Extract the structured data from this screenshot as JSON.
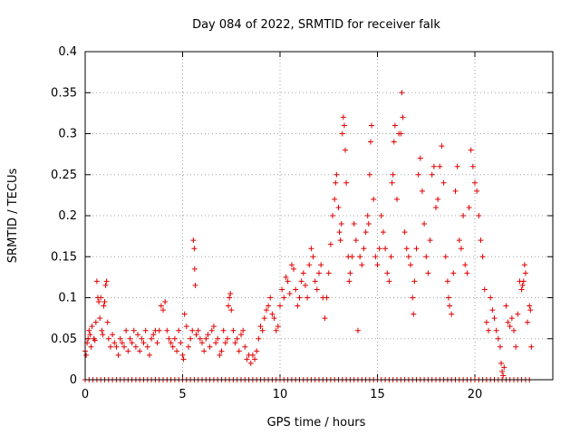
{
  "chart_data": {
    "type": "scatter",
    "title": "Day 084 of 2022, SRMTID for receiver falk",
    "xlabel": "GPS time / hours",
    "ylabel": "SRMTID / TECUs",
    "xlim": [
      0,
      24
    ],
    "ylim": [
      0,
      0.4
    ],
    "x_ticks": [
      0,
      5,
      10,
      15,
      20
    ],
    "x_tick_labels": [
      "0",
      "5",
      "10",
      "15",
      "20"
    ],
    "y_ticks": [
      0,
      0.05,
      0.1,
      0.15,
      0.2,
      0.25,
      0.3,
      0.35,
      0.4
    ],
    "y_tick_labels": [
      "0",
      "0.05",
      "0.1",
      "0.15",
      "0.2",
      "0.25",
      "0.3",
      "0.35",
      "0.4"
    ],
    "grid": true,
    "marker": "+",
    "color": "#e00000",
    "series": [
      {
        "name": "SRMTID",
        "points": [
          [
            0.0,
            0.035
          ],
          [
            0.05,
            0.03
          ],
          [
            0.1,
            0.045
          ],
          [
            0.15,
            0.05
          ],
          [
            0.2,
            0.06
          ],
          [
            0.25,
            0.055
          ],
          [
            0.3,
            0.04
          ],
          [
            0.35,
            0.065
          ],
          [
            0.45,
            0.05
          ],
          [
            0.5,
            0.048
          ],
          [
            0.55,
            0.07
          ],
          [
            0.6,
            0.12
          ],
          [
            0.65,
            0.1
          ],
          [
            0.7,
            0.095
          ],
          [
            0.75,
            0.075
          ],
          [
            0.8,
            0.1
          ],
          [
            0.85,
            0.06
          ],
          [
            0.9,
            0.055
          ],
          [
            0.95,
            0.09
          ],
          [
            1.0,
            0.095
          ],
          [
            1.05,
            0.115
          ],
          [
            1.1,
            0.12
          ],
          [
            1.15,
            0.07
          ],
          [
            1.2,
            0.05
          ],
          [
            1.3,
            0.04
          ],
          [
            1.4,
            0.055
          ],
          [
            1.5,
            0.045
          ],
          [
            1.6,
            0.04
          ],
          [
            1.7,
            0.03
          ],
          [
            1.8,
            0.05
          ],
          [
            1.9,
            0.045
          ],
          [
            2.0,
            0.04
          ],
          [
            2.1,
            0.06
          ],
          [
            2.2,
            0.035
          ],
          [
            2.3,
            0.05
          ],
          [
            2.4,
            0.045
          ],
          [
            2.5,
            0.06
          ],
          [
            2.6,
            0.04
          ],
          [
            2.7,
            0.055
          ],
          [
            2.8,
            0.035
          ],
          [
            2.9,
            0.05
          ],
          [
            3.0,
            0.045
          ],
          [
            3.1,
            0.06
          ],
          [
            3.2,
            0.04
          ],
          [
            3.3,
            0.03
          ],
          [
            3.4,
            0.05
          ],
          [
            3.5,
            0.055
          ],
          [
            3.6,
            0.06
          ],
          [
            3.7,
            0.045
          ],
          [
            3.8,
            0.06
          ],
          [
            3.9,
            0.09
          ],
          [
            4.0,
            0.085
          ],
          [
            4.1,
            0.095
          ],
          [
            4.2,
            0.06
          ],
          [
            4.3,
            0.05
          ],
          [
            4.4,
            0.045
          ],
          [
            4.5,
            0.04
          ],
          [
            4.6,
            0.05
          ],
          [
            4.7,
            0.035
          ],
          [
            4.8,
            0.06
          ],
          [
            4.9,
            0.045
          ],
          [
            5.0,
            0.03
          ],
          [
            5.05,
            0.025
          ],
          [
            5.1,
            0.08
          ],
          [
            5.2,
            0.065
          ],
          [
            5.3,
            0.04
          ],
          [
            5.4,
            0.05
          ],
          [
            5.5,
            0.06
          ],
          [
            5.55,
            0.17
          ],
          [
            5.6,
            0.16
          ],
          [
            5.62,
            0.135
          ],
          [
            5.65,
            0.115
          ],
          [
            5.7,
            0.055
          ],
          [
            5.8,
            0.06
          ],
          [
            5.9,
            0.05
          ],
          [
            6.0,
            0.045
          ],
          [
            6.1,
            0.035
          ],
          [
            6.2,
            0.05
          ],
          [
            6.3,
            0.055
          ],
          [
            6.4,
            0.04
          ],
          [
            6.5,
            0.06
          ],
          [
            6.6,
            0.065
          ],
          [
            6.7,
            0.045
          ],
          [
            6.8,
            0.05
          ],
          [
            6.9,
            0.03
          ],
          [
            7.0,
            0.035
          ],
          [
            7.1,
            0.06
          ],
          [
            7.2,
            0.045
          ],
          [
            7.3,
            0.05
          ],
          [
            7.35,
            0.09
          ],
          [
            7.4,
            0.1
          ],
          [
            7.45,
            0.105
          ],
          [
            7.5,
            0.085
          ],
          [
            7.6,
            0.06
          ],
          [
            7.7,
            0.045
          ],
          [
            7.8,
            0.05
          ],
          [
            7.9,
            0.035
          ],
          [
            8.0,
            0.055
          ],
          [
            8.1,
            0.06
          ],
          [
            8.2,
            0.04
          ],
          [
            8.3,
            0.025
          ],
          [
            8.4,
            0.03
          ],
          [
            8.5,
            0.02
          ],
          [
            8.6,
            0.03
          ],
          [
            8.7,
            0.025
          ],
          [
            8.8,
            0.035
          ],
          [
            8.9,
            0.05
          ],
          [
            9.0,
            0.065
          ],
          [
            9.1,
            0.06
          ],
          [
            9.2,
            0.075
          ],
          [
            9.3,
            0.085
          ],
          [
            9.4,
            0.09
          ],
          [
            9.5,
            0.1
          ],
          [
            9.6,
            0.08
          ],
          [
            9.7,
            0.075
          ],
          [
            9.8,
            0.06
          ],
          [
            9.9,
            0.065
          ],
          [
            10.0,
            0.09
          ],
          [
            10.1,
            0.11
          ],
          [
            10.2,
            0.1
          ],
          [
            10.3,
            0.125
          ],
          [
            10.4,
            0.12
          ],
          [
            10.5,
            0.105
          ],
          [
            10.6,
            0.14
          ],
          [
            10.7,
            0.135
          ],
          [
            10.8,
            0.11
          ],
          [
            10.9,
            0.09
          ],
          [
            11.0,
            0.1
          ],
          [
            11.1,
            0.12
          ],
          [
            11.2,
            0.13
          ],
          [
            11.3,
            0.115
          ],
          [
            11.4,
            0.1
          ],
          [
            11.5,
            0.14
          ],
          [
            11.6,
            0.16
          ],
          [
            11.7,
            0.15
          ],
          [
            11.8,
            0.12
          ],
          [
            11.9,
            0.11
          ],
          [
            12.0,
            0.13
          ],
          [
            12.1,
            0.14
          ],
          [
            12.2,
            0.1
          ],
          [
            12.3,
            0.075
          ],
          [
            12.4,
            0.1
          ],
          [
            12.5,
            0.13
          ],
          [
            12.6,
            0.165
          ],
          [
            12.7,
            0.2
          ],
          [
            12.8,
            0.22
          ],
          [
            12.85,
            0.24
          ],
          [
            12.9,
            0.25
          ],
          [
            13.0,
            0.21
          ],
          [
            13.05,
            0.18
          ],
          [
            13.1,
            0.17
          ],
          [
            13.15,
            0.19
          ],
          [
            13.2,
            0.3
          ],
          [
            13.25,
            0.32
          ],
          [
            13.3,
            0.31
          ],
          [
            13.35,
            0.28
          ],
          [
            13.4,
            0.24
          ],
          [
            13.5,
            0.15
          ],
          [
            13.55,
            0.12
          ],
          [
            13.6,
            0.13
          ],
          [
            13.7,
            0.15
          ],
          [
            13.8,
            0.19
          ],
          [
            13.9,
            0.17
          ],
          [
            14.0,
            0.06
          ],
          [
            14.1,
            0.15
          ],
          [
            14.2,
            0.14
          ],
          [
            14.3,
            0.16
          ],
          [
            14.4,
            0.18
          ],
          [
            14.5,
            0.2
          ],
          [
            14.55,
            0.19
          ],
          [
            14.6,
            0.25
          ],
          [
            14.65,
            0.29
          ],
          [
            14.7,
            0.31
          ],
          [
            14.8,
            0.22
          ],
          [
            14.9,
            0.15
          ],
          [
            15.0,
            0.14
          ],
          [
            15.1,
            0.16
          ],
          [
            15.2,
            0.2
          ],
          [
            15.3,
            0.18
          ],
          [
            15.4,
            0.16
          ],
          [
            15.5,
            0.13
          ],
          [
            15.6,
            0.12
          ],
          [
            15.7,
            0.15
          ],
          [
            15.75,
            0.24
          ],
          [
            15.8,
            0.25
          ],
          [
            15.85,
            0.29
          ],
          [
            15.9,
            0.31
          ],
          [
            16.0,
            0.22
          ],
          [
            16.1,
            0.3
          ],
          [
            16.2,
            0.3
          ],
          [
            16.25,
            0.35
          ],
          [
            16.3,
            0.32
          ],
          [
            16.4,
            0.18
          ],
          [
            16.5,
            0.16
          ],
          [
            16.6,
            0.15
          ],
          [
            16.7,
            0.14
          ],
          [
            16.8,
            0.1
          ],
          [
            16.85,
            0.08
          ],
          [
            16.9,
            0.12
          ],
          [
            17.0,
            0.16
          ],
          [
            17.1,
            0.25
          ],
          [
            17.2,
            0.27
          ],
          [
            17.3,
            0.23
          ],
          [
            17.4,
            0.19
          ],
          [
            17.5,
            0.15
          ],
          [
            17.6,
            0.13
          ],
          [
            17.7,
            0.17
          ],
          [
            17.8,
            0.25
          ],
          [
            17.9,
            0.26
          ],
          [
            18.0,
            0.21
          ],
          [
            18.1,
            0.22
          ],
          [
            18.2,
            0.26
          ],
          [
            18.3,
            0.285
          ],
          [
            18.4,
            0.24
          ],
          [
            18.5,
            0.15
          ],
          [
            18.6,
            0.12
          ],
          [
            18.65,
            0.1
          ],
          [
            18.7,
            0.09
          ],
          [
            18.8,
            0.08
          ],
          [
            18.9,
            0.13
          ],
          [
            19.0,
            0.23
          ],
          [
            19.1,
            0.26
          ],
          [
            19.2,
            0.17
          ],
          [
            19.3,
            0.16
          ],
          [
            19.4,
            0.2
          ],
          [
            19.5,
            0.14
          ],
          [
            19.6,
            0.13
          ],
          [
            19.7,
            0.21
          ],
          [
            19.8,
            0.28
          ],
          [
            19.9,
            0.26
          ],
          [
            20.0,
            0.24
          ],
          [
            20.1,
            0.23
          ],
          [
            20.2,
            0.2
          ],
          [
            20.3,
            0.17
          ],
          [
            20.4,
            0.15
          ],
          [
            20.5,
            0.11
          ],
          [
            20.6,
            0.07
          ],
          [
            20.7,
            0.06
          ],
          [
            20.8,
            0.1
          ],
          [
            20.9,
            0.085
          ],
          [
            21.0,
            0.075
          ],
          [
            21.1,
            0.06
          ],
          [
            21.2,
            0.05
          ],
          [
            21.3,
            0.04
          ],
          [
            21.35,
            0.02
          ],
          [
            21.4,
            0.01
          ],
          [
            21.45,
            0.005
          ],
          [
            21.5,
            0.015
          ],
          [
            21.6,
            0.09
          ],
          [
            21.7,
            0.07
          ],
          [
            21.8,
            0.065
          ],
          [
            21.9,
            0.075
          ],
          [
            22.0,
            0.06
          ],
          [
            22.1,
            0.04
          ],
          [
            22.2,
            0.08
          ],
          [
            22.3,
            0.12
          ],
          [
            22.4,
            0.11
          ],
          [
            22.45,
            0.115
          ],
          [
            22.5,
            0.12
          ],
          [
            22.55,
            0.14
          ],
          [
            22.6,
            0.13
          ],
          [
            22.7,
            0.07
          ],
          [
            22.8,
            0.09
          ],
          [
            22.85,
            0.085
          ],
          [
            22.9,
            0.04
          ]
        ]
      }
    ]
  }
}
